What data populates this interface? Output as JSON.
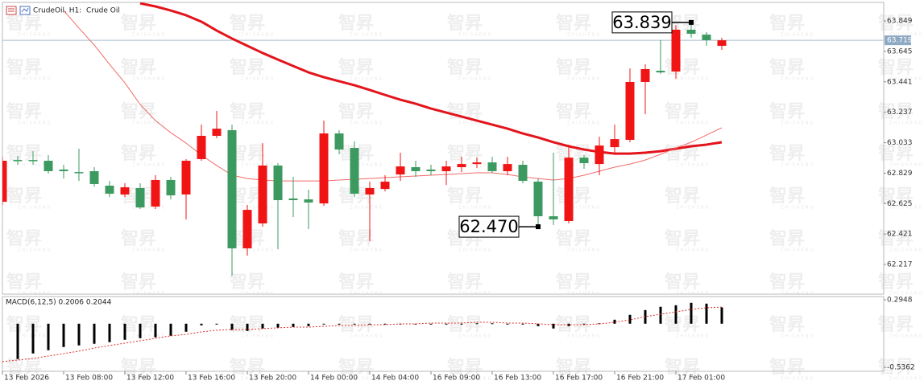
{
  "watermark": "智昇",
  "watermark_sub": "ZHISHENG",
  "chart_data": [
    {
      "type": "candlestick",
      "title": "CrudeOil, H1:  Crude Oil",
      "categories": [
        "13 Feb 2026",
        null,
        null,
        null,
        "13 Feb 08:00",
        null,
        null,
        null,
        "13 Feb 12:00",
        null,
        null,
        null,
        "13 Feb 16:00",
        null,
        null,
        null,
        "13 Feb 20:00",
        null,
        null,
        null,
        "14 Feb 00:00",
        null,
        null,
        null,
        "14 Feb 04:00",
        null,
        null,
        null,
        "16 Feb 09:00",
        null,
        null,
        null,
        "16 Feb 13:00",
        null,
        null,
        null,
        "16 Feb 17:00",
        null,
        null,
        null,
        "16 Feb 21:00",
        null,
        null,
        null,
        "17 Feb 01:00",
        null,
        null,
        null
      ],
      "open": [
        62.637,
        62.917,
        62.917,
        62.912,
        62.853,
        62.836,
        62.842,
        62.745,
        62.686,
        62.729,
        62.605,
        62.783,
        62.686,
        62.923,
        63.079,
        63.117,
        62.325,
        62.492,
        62.88,
        62.659,
        62.653,
        62.626,
        63.095,
        62.998,
        62.686,
        62.723,
        62.82,
        62.869,
        62.853,
        62.842,
        62.869,
        62.89,
        62.901,
        62.842,
        62.885,
        62.772,
        62.54,
        62.508,
        62.933,
        62.89,
        63.003,
        63.052,
        63.44,
        63.515,
        63.51,
        63.79,
        63.757,
        63.682
      ],
      "high": [
        62.939,
        62.944,
        62.976,
        62.95,
        62.885,
        62.993,
        62.869,
        62.777,
        62.761,
        62.761,
        62.815,
        62.804,
        62.923,
        63.154,
        63.246,
        63.154,
        62.616,
        63.03,
        62.896,
        62.804,
        62.718,
        63.181,
        63.117,
        63.041,
        62.772,
        62.815,
        62.966,
        62.912,
        62.885,
        62.912,
        62.939,
        62.933,
        62.939,
        62.939,
        62.912,
        62.793,
        62.966,
        63.02,
        62.95,
        63.073,
        63.154,
        63.531,
        63.558,
        63.72,
        63.82,
        63.839,
        63.774,
        63.736
      ],
      "low": [
        62.616,
        62.885,
        62.885,
        62.826,
        62.793,
        62.777,
        62.739,
        62.669,
        62.669,
        62.589,
        62.589,
        62.653,
        62.519,
        62.912,
        63.063,
        62.142,
        62.276,
        62.47,
        62.319,
        62.535,
        62.454,
        62.61,
        62.955,
        62.669,
        62.373,
        62.707,
        62.777,
        62.804,
        62.815,
        62.75,
        62.836,
        62.863,
        62.831,
        62.815,
        62.761,
        62.47,
        62.481,
        62.492,
        62.858,
        62.815,
        62.966,
        63.036,
        63.224,
        63.494,
        63.461,
        63.736,
        63.682,
        63.655
      ],
      "close": [
        62.912,
        62.912,
        62.912,
        62.842,
        62.842,
        62.831,
        62.756,
        62.691,
        62.734,
        62.599,
        62.783,
        62.68,
        62.912,
        63.079,
        63.127,
        62.325,
        62.583,
        62.88,
        62.648,
        62.648,
        62.632,
        63.095,
        62.987,
        62.691,
        62.729,
        62.772,
        62.874,
        62.842,
        62.842,
        62.874,
        62.89,
        62.901,
        62.842,
        62.89,
        62.777,
        62.54,
        62.519,
        62.933,
        62.896,
        63.014,
        63.057,
        63.44,
        63.526,
        63.504,
        63.79,
        63.763,
        63.72,
        63.719
      ],
      "up_color": "#f01414",
      "down_color": "#3c9a60",
      "series": [
        {
          "color": "#e3141c",
          "line_width": 3,
          "values": [
            null,
            null,
            null,
            null,
            null,
            null,
            null,
            null,
            null,
            63.967,
            63.946,
            63.919,
            63.887,
            63.844,
            63.784,
            63.731,
            63.682,
            63.634,
            63.59,
            63.547,
            63.504,
            63.472,
            63.445,
            63.418,
            63.386,
            63.353,
            63.321,
            63.294,
            63.262,
            63.235,
            63.208,
            63.181,
            63.154,
            63.127,
            63.095,
            63.068,
            63.036,
            63.009,
            62.987,
            62.971,
            62.96,
            62.96,
            62.966,
            62.976,
            62.993,
            63.009,
            63.02,
            63.036
          ]
        },
        {
          "color": "#f26a6a",
          "line_width": 1,
          "values": [
            null,
            null,
            null,
            null,
            63.919,
            63.801,
            63.687,
            63.558,
            63.434,
            63.289,
            63.181,
            63.1,
            63.03,
            62.95,
            62.88,
            62.815,
            62.793,
            62.783,
            62.777,
            62.777,
            62.777,
            62.777,
            62.783,
            62.788,
            62.793,
            62.799,
            62.804,
            62.81,
            62.815,
            62.82,
            62.826,
            62.831,
            62.831,
            62.82,
            62.804,
            62.793,
            62.783,
            62.793,
            62.815,
            62.842,
            62.869,
            62.89,
            62.917,
            62.955,
            62.998,
            63.036,
            63.084,
            63.133
          ]
        }
      ],
      "current_price": 63.719,
      "annotations": [
        {
          "x": 45,
          "value": 63.839,
          "label": "63.839"
        },
        {
          "x": 35,
          "value": 62.47,
          "label": "62.470"
        }
      ],
      "ylim": [
        62.018,
        63.973
      ],
      "yticks": [
        63.849,
        63.645,
        63.441,
        63.237,
        63.033,
        62.829,
        62.625,
        62.421,
        62.217
      ]
    },
    {
      "type": "macd",
      "title": "MACD(6,12,5) 0.2006 0.2044",
      "histogram_color": "#000000",
      "signal_color": "#e03030",
      "histogram": [
        null,
        -0.435,
        -0.366,
        -0.326,
        -0.287,
        -0.267,
        -0.247,
        -0.227,
        -0.198,
        -0.178,
        -0.168,
        -0.148,
        -0.099,
        -0.02,
        -0.005,
        -0.079,
        -0.089,
        -0.059,
        -0.049,
        -0.04,
        -0.03,
        -0.01,
        -0.003,
        -0.01,
        -0.01,
        -0.008,
        -0.003,
        -0.003,
        -0.003,
        -0.003,
        -0.003,
        0.005,
        0.005,
        -0.003,
        -0.01,
        -0.03,
        -0.059,
        -0.03,
        -0.01,
        0.005,
        0.049,
        0.109,
        0.168,
        0.208,
        0.227,
        0.257,
        0.247,
        0.2006
      ],
      "signal": [
        -0.467,
        -0.447,
        -0.427,
        -0.398,
        -0.368,
        -0.338,
        -0.299,
        -0.269,
        -0.239,
        -0.21,
        -0.18,
        -0.15,
        -0.131,
        -0.101,
        -0.081,
        -0.071,
        -0.071,
        -0.061,
        -0.051,
        -0.042,
        -0.042,
        -0.032,
        -0.022,
        -0.022,
        -0.012,
        -0.012,
        -0.002,
        -0.002,
        0.008,
        0.008,
        0.008,
        0.018,
        0.018,
        0.008,
        0.008,
        -0.002,
        -0.012,
        -0.012,
        -0.012,
        -0.002,
        0.018,
        0.047,
        0.087,
        0.117,
        0.146,
        0.176,
        0.196,
        0.2044
      ],
      "ylim": [
        -0.586,
        0.334
      ],
      "yticks": [
        0.2948,
        -0.5362
      ]
    }
  ]
}
